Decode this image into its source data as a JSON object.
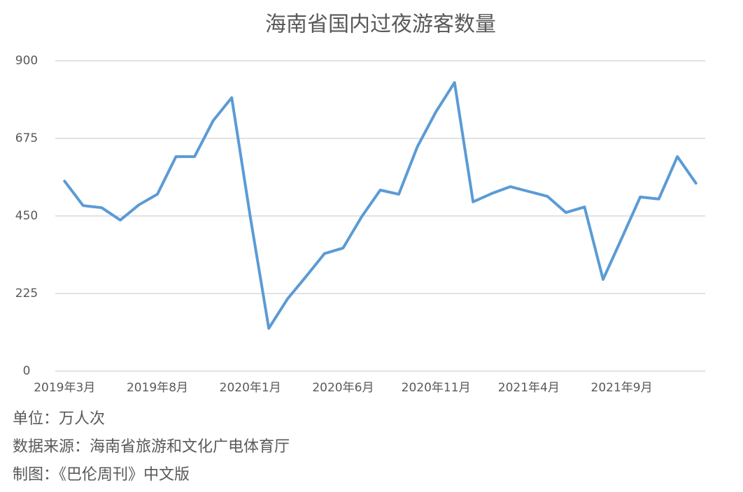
{
  "chart_data": {
    "type": "line",
    "title": "海南省国内过夜游客数量",
    "categories": [
      "2019年3月",
      null,
      null,
      null,
      null,
      "2019年8月",
      null,
      null,
      null,
      null,
      "2020年1月",
      null,
      null,
      null,
      null,
      "2020年6月",
      null,
      null,
      null,
      null,
      "2020年11月",
      null,
      null,
      null,
      null,
      "2021年4月",
      null,
      null,
      null,
      null,
      "2021年9月",
      null,
      null,
      null,
      null
    ],
    "series": [
      {
        "name": "海南省国内过夜游客数量",
        "color": "#5b9bd5",
        "values": [
          551,
          480,
          474,
          438,
          482,
          513,
          622,
          622,
          726,
          793,
          448,
          124,
          209,
          274,
          341,
          357,
          448,
          525,
          513,
          651,
          752,
          837,
          491,
          515,
          535,
          521,
          507,
          460,
          476,
          266,
          385,
          505,
          499,
          622,
          545
        ]
      }
    ],
    "ylim": [
      0,
      900
    ],
    "yticks": [
      0,
      225,
      450,
      675,
      900
    ],
    "grid": true,
    "footer": [
      "单位：万人次",
      "数据来源：海南省旅游和文化广电体育厅",
      "制图：《巴伦周刊》中文版"
    ]
  }
}
